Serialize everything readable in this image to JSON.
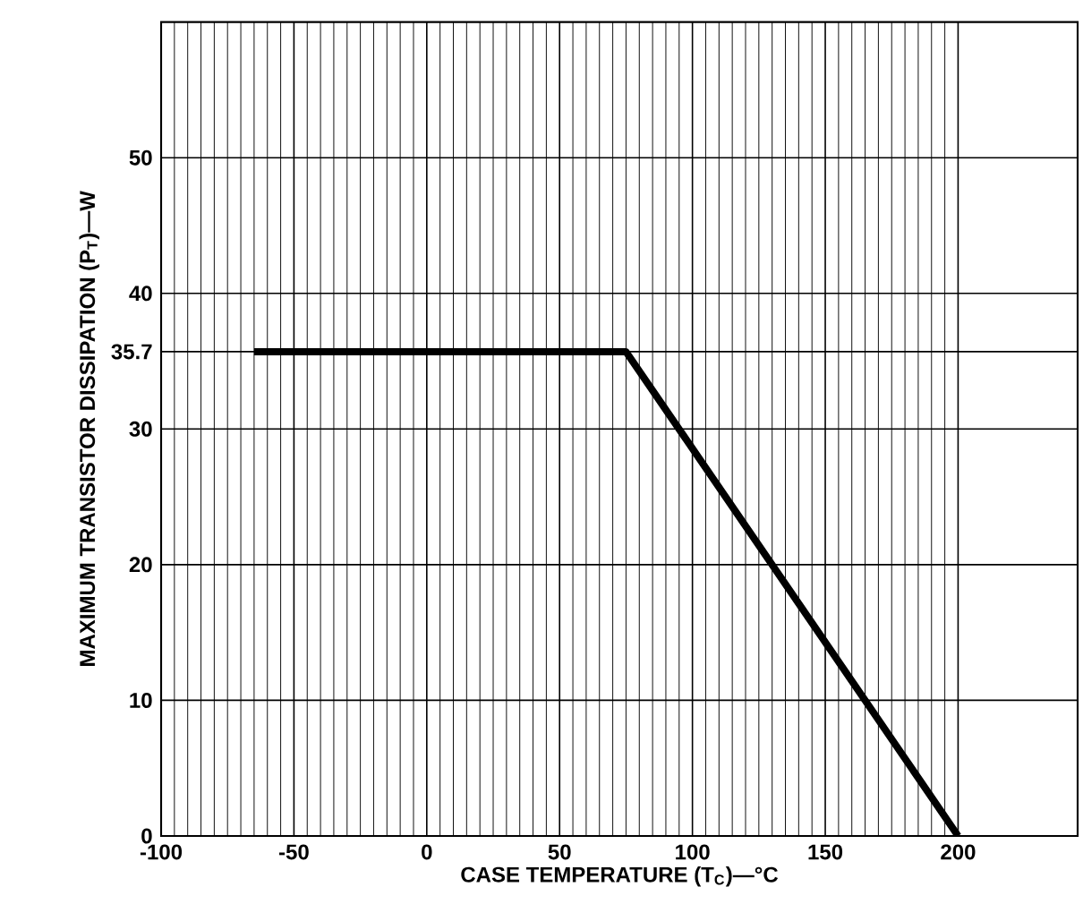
{
  "chart_data": {
    "type": "line",
    "xlabel": "CASE TEMPERATURE (T$_{C}$)—°C",
    "ylabel": "MAXIMUM TRANSISTOR DISSIPATION (P$_{T}$)—W",
    "x": [
      -65,
      75,
      200
    ],
    "series": [
      {
        "color": "#000000",
        "values": [
          35.7,
          35.7,
          0
        ]
      }
    ],
    "xlim": [
      -100,
      245
    ],
    "ylim": [
      0,
      60
    ],
    "xticks": [
      -100,
      -50,
      0,
      50,
      100,
      150,
      200
    ],
    "yticks": [
      0,
      10,
      20,
      30,
      35.7,
      40,
      50
    ],
    "grid": true,
    "marker": "none",
    "line_style": "solid"
  }
}
